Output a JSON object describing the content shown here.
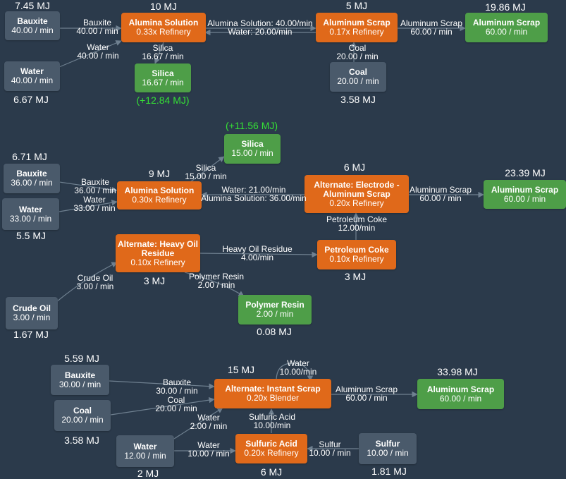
{
  "colors": {
    "background": "#2b3a4b",
    "source_node": "#4a5a6b",
    "recipe_node": "#e0691a",
    "output_node": "#4e9e48",
    "edge": "#6f8090",
    "energy_gain": "#35e035"
  },
  "nodes": {
    "bauxite1": {
      "title": "Bauxite",
      "sub": "40.00 / min"
    },
    "water1": {
      "title": "Water",
      "sub": "40.00 / min"
    },
    "alumina1": {
      "title": "Alumina Solution",
      "sub": "0.33x Refinery"
    },
    "silica1": {
      "title": "Silica",
      "sub": "16.67 / min"
    },
    "scrap1": {
      "title": "Aluminum Scrap",
      "sub": "0.17x Refinery"
    },
    "coal1": {
      "title": "Coal",
      "sub": "20.00 / min"
    },
    "out1": {
      "title": "Aluminum Scrap",
      "sub": "60.00 / min"
    },
    "silica2": {
      "title": "Silica",
      "sub": "15.00 / min"
    },
    "bauxite2": {
      "title": "Bauxite",
      "sub": "36.00 / min"
    },
    "water2": {
      "title": "Water",
      "sub": "33.00 / min"
    },
    "alumina2": {
      "title": "Alumina Solution",
      "sub": "0.30x Refinery"
    },
    "electrode": {
      "title": "Alternate: Electrode - Aluminum Scrap",
      "sub": "0.20x Refinery"
    },
    "out2": {
      "title": "Aluminum Scrap",
      "sub": "60.00 / min"
    },
    "heavyoil": {
      "title": "Alternate: Heavy Oil Residue",
      "sub": "0.10x Refinery"
    },
    "petcoke": {
      "title": "Petroleum Coke",
      "sub": "0.10x Refinery"
    },
    "crudeoil": {
      "title": "Crude Oil",
      "sub": "3.00 / min"
    },
    "polymer": {
      "title": "Polymer Resin",
      "sub": "2.00 / min"
    },
    "bauxite3": {
      "title": "Bauxite",
      "sub": "30.00 / min"
    },
    "coal3": {
      "title": "Coal",
      "sub": "20.00 / min"
    },
    "instant": {
      "title": "Alternate: Instant Scrap",
      "sub": "0.20x Blender"
    },
    "out3": {
      "title": "Aluminum Scrap",
      "sub": "60.00 / min"
    },
    "water3": {
      "title": "Water",
      "sub": "12.00 / min"
    },
    "sulfuric": {
      "title": "Sulfuric Acid",
      "sub": "0.20x Refinery"
    },
    "sulfur": {
      "title": "Sulfur",
      "sub": "10.00 / min"
    }
  },
  "energy": {
    "bauxite1": "7.45 MJ",
    "alumina1": "10 MJ",
    "scrap1": "5 MJ",
    "out1": "19.86 MJ",
    "water1": "6.67 MJ",
    "silica1": "(+12.84 MJ)",
    "coal1": "3.58 MJ",
    "silica2": "(+11.56 MJ)",
    "bauxite2": "6.71 MJ",
    "alumina2": "9 MJ",
    "electrode": "6 MJ",
    "out2": "23.39 MJ",
    "water2": "5.5 MJ",
    "heavyoil": "3 MJ",
    "petcoke": "3 MJ",
    "crudeoil": "1.67 MJ",
    "polymer": "0.08 MJ",
    "bauxite3": "5.59 MJ",
    "instant": "15 MJ",
    "out3": "33.98 MJ",
    "coal3": "3.58 MJ",
    "water3": "2 MJ",
    "sulfuric": "6 MJ",
    "sulfur": "1.81 MJ"
  },
  "edges": {
    "e1": [
      "Bauxite",
      "40.00 / min"
    ],
    "e2": [
      "Water",
      "40.00 / min"
    ],
    "e3": [
      "Silica",
      "16.67 / min"
    ],
    "e4": [
      "Alumina Solution: 40.00/min",
      "Water: 20.00/min"
    ],
    "e5": [
      "Coal",
      "20.00 / min"
    ],
    "e6": [
      "Aluminum Scrap",
      "60.00 / min"
    ],
    "e7": [
      "Silica",
      "15.00 / min"
    ],
    "e8": [
      "Bauxite",
      "36.00 / min"
    ],
    "e9": [
      "Water",
      "33.00 / min"
    ],
    "e10": [
      "Water: 21.00/min",
      "Alumina Solution: 36.00/min"
    ],
    "e11": [
      "Aluminum Scrap",
      "60.00 / min"
    ],
    "e12": [
      "Petroleum Coke",
      "12.00/min"
    ],
    "e13": [
      "Heavy Oil Residue",
      "4.00/min"
    ],
    "e14": [
      "Crude Oil",
      "3.00 / min"
    ],
    "e15": [
      "Polymer Resin",
      "2.00 / min"
    ],
    "e16": [
      "Bauxite",
      "30.00 / min"
    ],
    "e17": [
      "Coal",
      "20.00 / min"
    ],
    "e18": [
      "Water",
      "10.00/min"
    ],
    "e19": [
      "Aluminum Scrap",
      "60.00 / min"
    ],
    "e20": [
      "Sulfuric Acid",
      "10.00/min"
    ],
    "e21": [
      "Water",
      "2.00 / min"
    ],
    "e22": [
      "Water",
      "10.00 / min"
    ],
    "e23": [
      "Sulfur",
      "10.00 / min"
    ]
  }
}
